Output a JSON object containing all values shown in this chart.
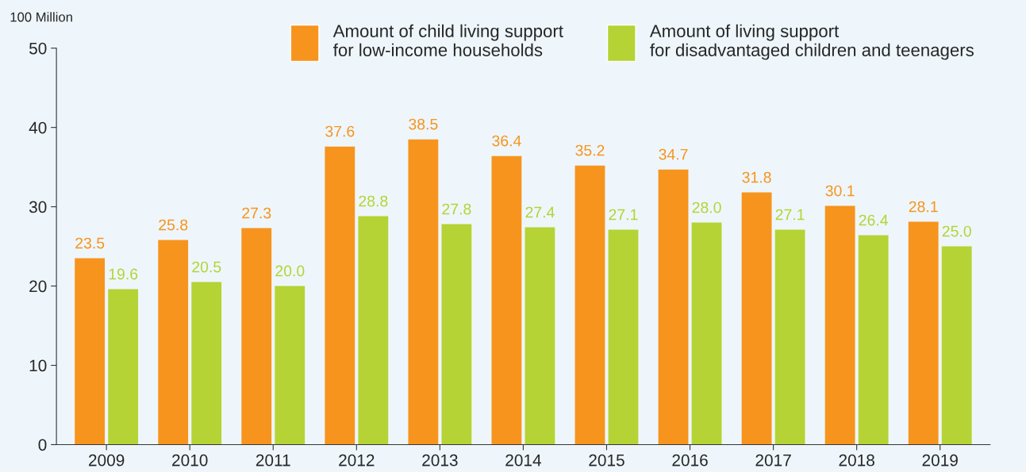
{
  "chart_data": {
    "type": "bar",
    "ylabel": "100 Million",
    "categories": [
      "2009",
      "2010",
      "2011",
      "2012",
      "2013",
      "2014",
      "2015",
      "2016",
      "2017",
      "2018",
      "2019"
    ],
    "series": [
      {
        "name": "Amount of child living support\nfor low-income households",
        "color": "#f7941d",
        "values": [
          23.5,
          25.8,
          27.3,
          37.6,
          38.5,
          36.4,
          35.2,
          34.7,
          31.8,
          30.1,
          28.1
        ],
        "value_labels": [
          "23.5",
          "25.8",
          "27.3",
          "37.6",
          "38.5",
          "36.4",
          "35.2",
          "34.7",
          "31.8",
          "30.1",
          "28.1"
        ]
      },
      {
        "name": "Amount of living support\nfor disadvantaged children and teenagers",
        "color": "#b5d334",
        "values": [
          19.6,
          20.5,
          20,
          28.8,
          27.8,
          27.4,
          27.1,
          28,
          27.1,
          26.4,
          25
        ],
        "value_labels": [
          "19.6",
          "20.5",
          "20.0",
          "28.8",
          "27.8",
          "27.4",
          "27.1",
          "28.0",
          "27.1",
          "26.4",
          "25.0"
        ]
      }
    ],
    "ylim": [
      0,
      50
    ],
    "yticks": [
      0,
      10,
      20,
      30,
      40,
      50
    ],
    "grid": false,
    "legend": "top right"
  }
}
